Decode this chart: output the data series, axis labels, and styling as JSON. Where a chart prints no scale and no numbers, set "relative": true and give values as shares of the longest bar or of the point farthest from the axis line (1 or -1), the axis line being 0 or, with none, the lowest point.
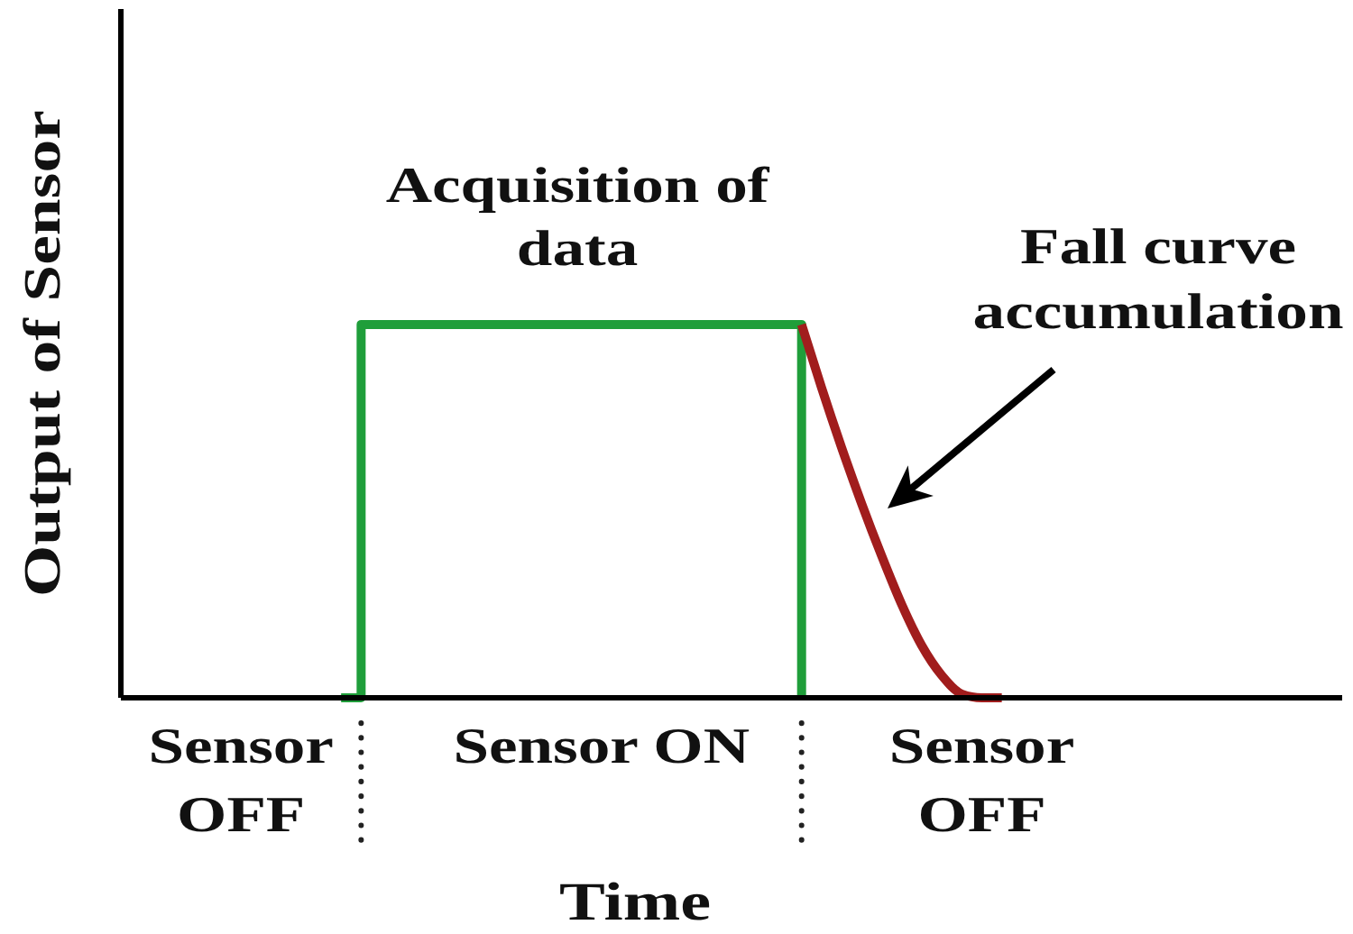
{
  "chart_data": {
    "type": "line",
    "xlabel": "Time",
    "ylabel": "Output of Sensor",
    "relative": true,
    "tick_labels": "x",
    "categories": [
      null,
      null,
      null,
      null,
      null,
      null,
      "Sensor\nOFF",
      null,
      null,
      null,
      null,
      null,
      null,
      null,
      null,
      null,
      null,
      null,
      null,
      null,
      null,
      null,
      null,
      null,
      "Sensor ON",
      null,
      null,
      null,
      null,
      null,
      null,
      null,
      null,
      null,
      null,
      null,
      null,
      null,
      null,
      null,
      null,
      null,
      null,
      "Sensor\nOFF",
      null,
      null,
      null,
      null,
      null,
      null,
      null,
      null,
      null,
      null,
      null,
      null,
      null,
      null,
      null,
      null,
      null,
      null
    ],
    "series": [
      {
        "type": "step",
        "color": "#1f9e3a",
        "values": [
          null,
          null,
          null,
          null,
          null,
          null,
          null,
          null,
          null,
          null,
          null,
          0,
          1,
          1,
          1,
          1,
          1,
          1,
          1,
          1,
          1,
          1,
          1,
          1,
          1,
          1,
          1,
          1,
          1,
          1,
          1,
          1,
          1,
          1,
          0,
          null,
          null,
          null,
          null,
          null,
          null,
          null,
          null,
          null,
          null,
          null,
          null,
          null,
          null,
          null,
          null,
          null,
          null,
          null,
          null,
          null,
          null,
          null,
          null,
          null,
          null,
          null
        ]
      },
      {
        "type": "line",
        "color": "#a11d1d",
        "values": [
          null,
          null,
          null,
          null,
          null,
          null,
          null,
          null,
          null,
          null,
          null,
          null,
          null,
          null,
          null,
          null,
          null,
          null,
          null,
          null,
          null,
          null,
          null,
          null,
          null,
          null,
          null,
          null,
          null,
          null,
          null,
          null,
          null,
          null,
          1,
          0.83,
          0.67,
          0.52,
          0.38,
          0.25,
          0.14,
          0.06,
          0.01,
          0,
          0,
          null,
          null,
          null,
          null,
          null,
          null,
          null,
          null,
          null,
          null,
          null,
          null,
          null,
          null,
          null,
          null,
          null
        ]
      }
    ],
    "annotations": [
      {
        "text": "Acquisition of\ndata",
        "y": 1
      },
      "Fall curve\naccumulation"
    ]
  }
}
